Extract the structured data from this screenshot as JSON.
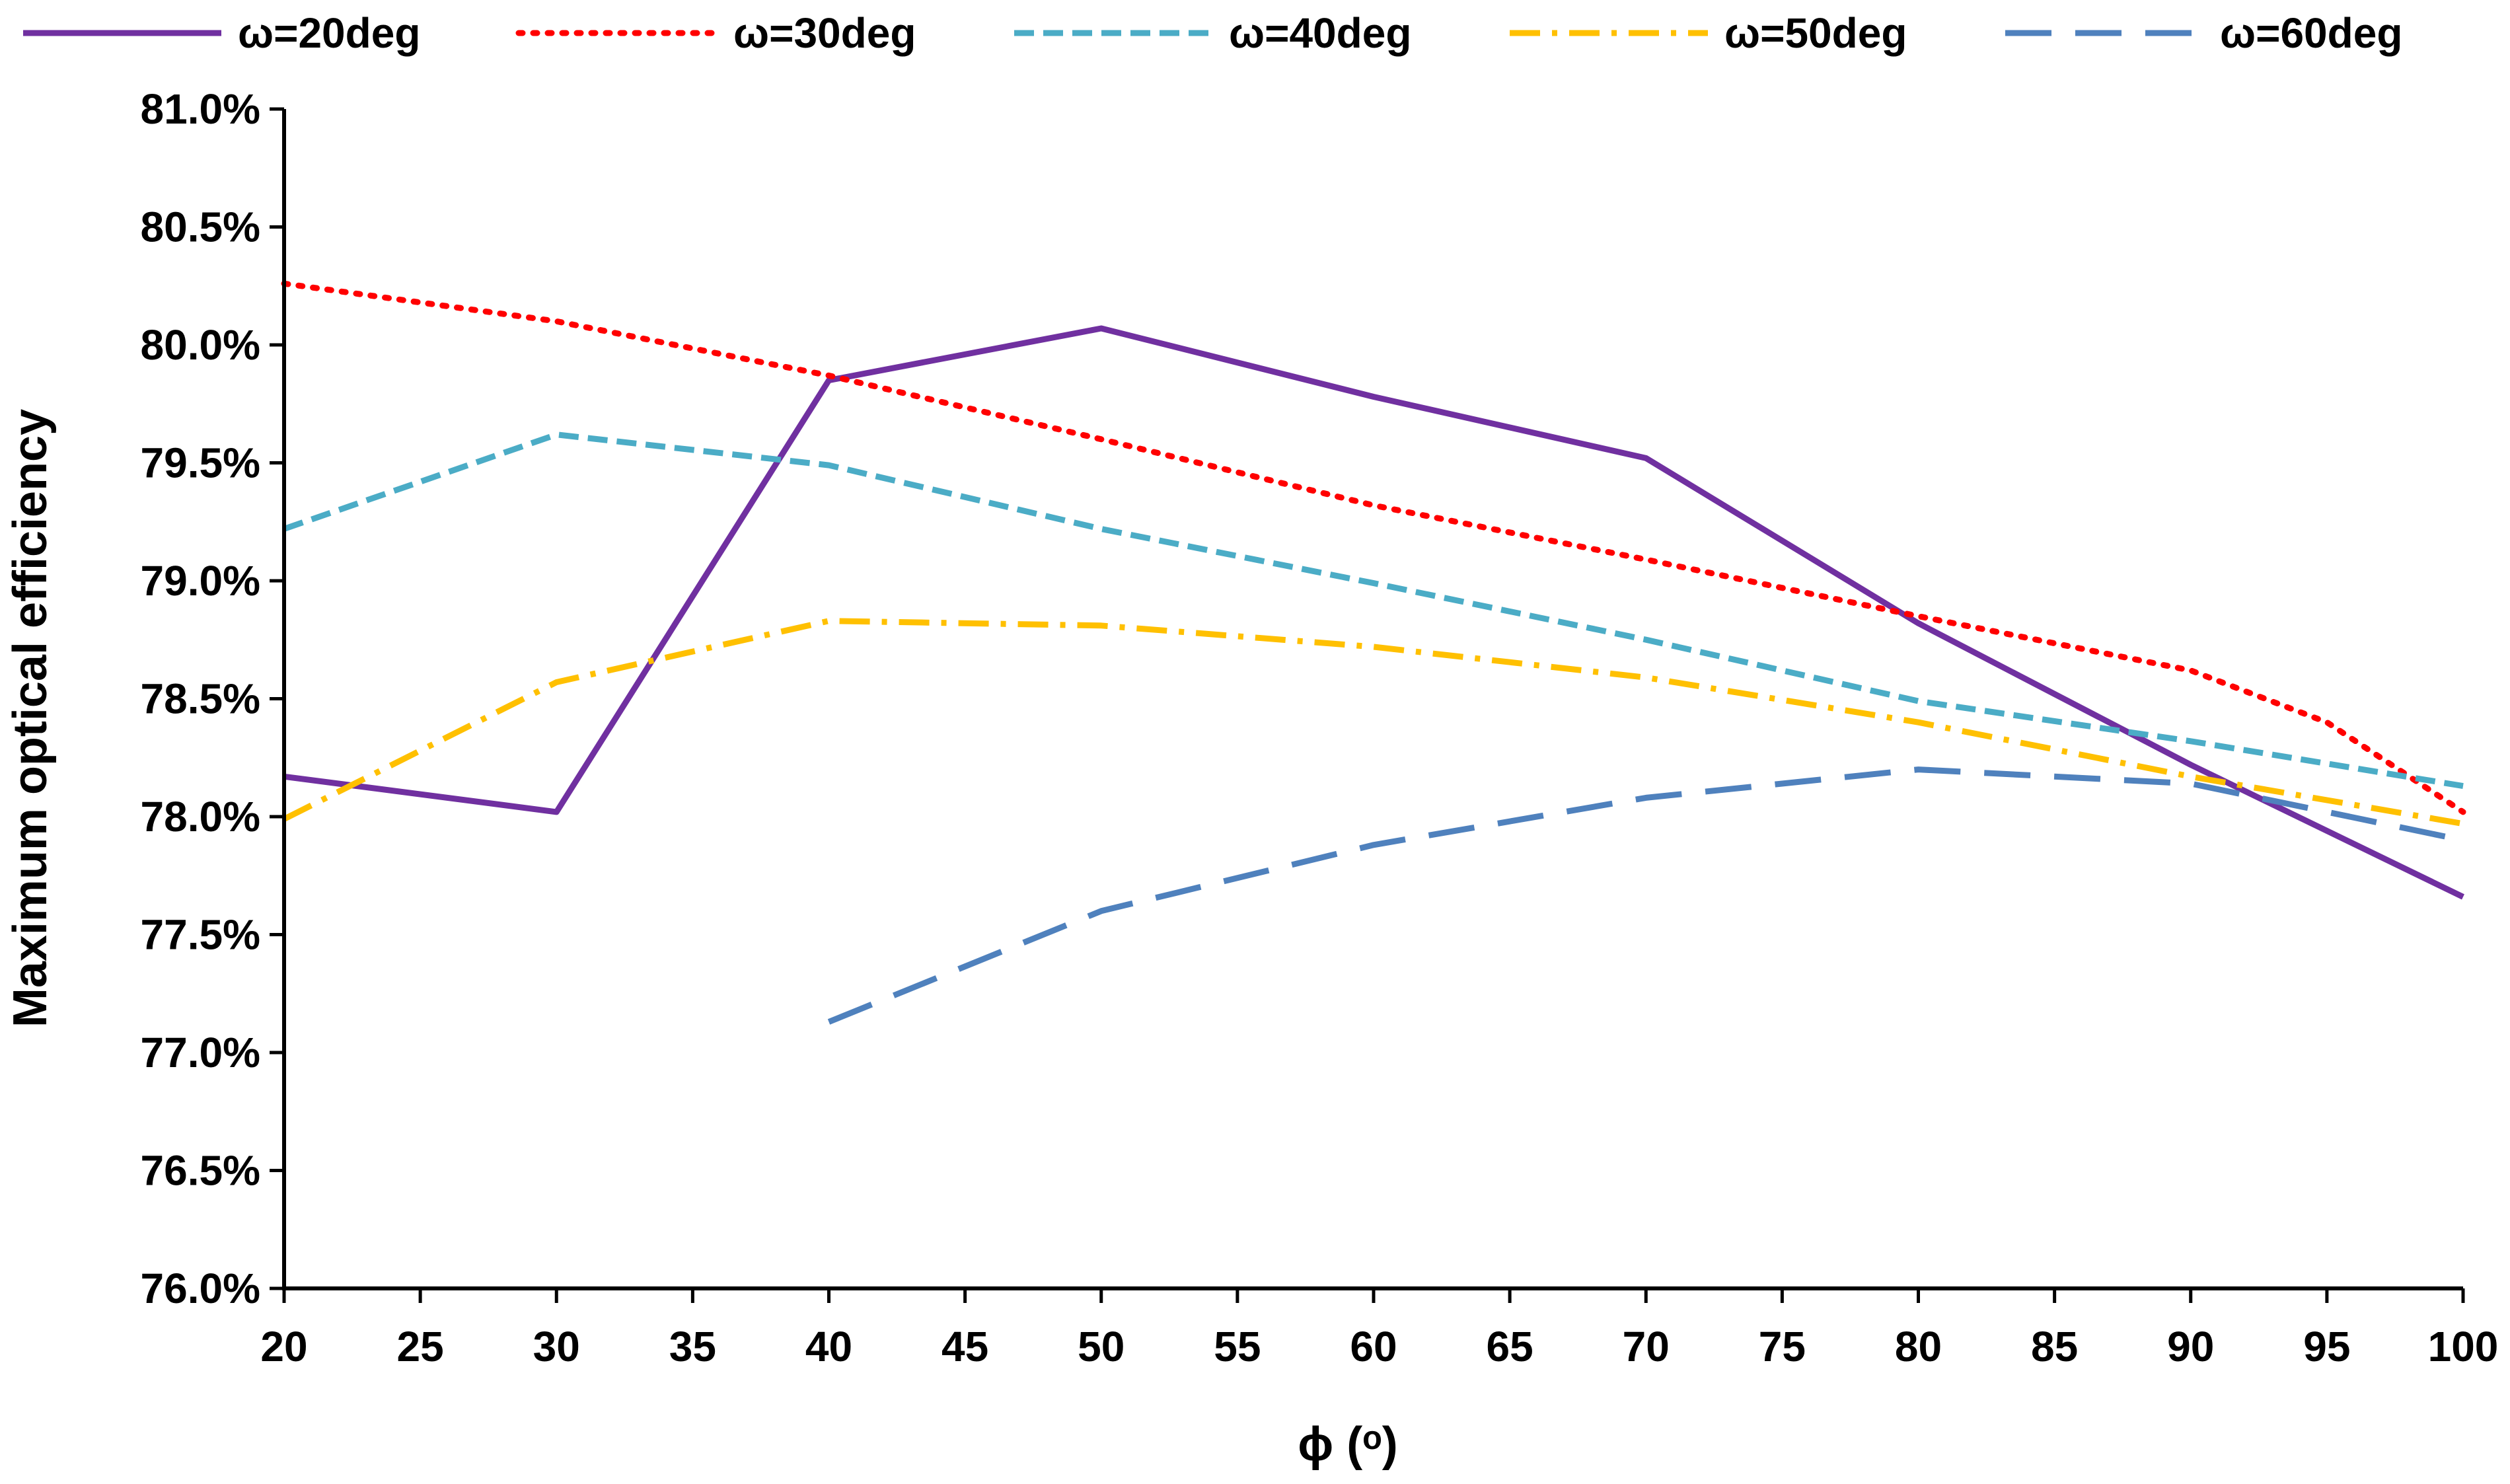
{
  "chart_data": {
    "type": "line",
    "xlabel": "ϕ (ᵒ)",
    "ylabel": "Maximum optical efficiency",
    "xlim": [
      20,
      100
    ],
    "ylim": [
      76.0,
      81.0
    ],
    "x_ticks": [
      20,
      25,
      30,
      35,
      40,
      45,
      50,
      55,
      60,
      65,
      70,
      75,
      80,
      85,
      90,
      95,
      100
    ],
    "x_tick_labels": [
      "20",
      "25",
      "30",
      "35",
      "40",
      "45",
      "50",
      "55",
      "60",
      "65",
      "70",
      "75",
      "80",
      "85",
      "90",
      "95",
      "100"
    ],
    "y_ticks": [
      76.0,
      76.5,
      77.0,
      77.5,
      78.0,
      78.5,
      79.0,
      79.5,
      80.0,
      80.5,
      81.0
    ],
    "y_tick_labels": [
      "76.0%",
      "76.5%",
      "77.0%",
      "77.5%",
      "78.0%",
      "78.5%",
      "79.0%",
      "79.5%",
      "80.0%",
      "80.5%",
      "81.0%"
    ],
    "grid": false,
    "legend_position": "top",
    "series": [
      {
        "name": "ω=20deg",
        "color": "#7030A0",
        "style": "solid",
        "points": [
          [
            20,
            78.17
          ],
          [
            30,
            78.02
          ],
          [
            40,
            79.85
          ],
          [
            50,
            80.07
          ],
          [
            60,
            79.78
          ],
          [
            70,
            79.52
          ],
          [
            80,
            78.82
          ],
          [
            90,
            78.22
          ],
          [
            100,
            77.66
          ]
        ]
      },
      {
        "name": "ω=30deg",
        "color": "#FF0000",
        "style": "dotted",
        "points": [
          [
            20,
            80.26
          ],
          [
            30,
            80.1
          ],
          [
            40,
            79.87
          ],
          [
            50,
            79.6
          ],
          [
            60,
            79.32
          ],
          [
            70,
            79.09
          ],
          [
            80,
            78.85
          ],
          [
            90,
            78.62
          ],
          [
            95,
            78.4
          ],
          [
            100,
            78.02
          ]
        ]
      },
      {
        "name": "ω=40deg",
        "color": "#4BACC6",
        "style": "dashed",
        "points": [
          [
            20,
            79.22
          ],
          [
            30,
            79.62
          ],
          [
            40,
            79.49
          ],
          [
            50,
            79.22
          ],
          [
            60,
            78.99
          ],
          [
            70,
            78.75
          ],
          [
            80,
            78.49
          ],
          [
            90,
            78.32
          ],
          [
            100,
            78.13
          ]
        ]
      },
      {
        "name": "ω=50deg",
        "color": "#FFC000",
        "style": "dashdot",
        "points": [
          [
            20,
            77.99
          ],
          [
            30,
            78.57
          ],
          [
            40,
            78.83
          ],
          [
            50,
            78.81
          ],
          [
            60,
            78.72
          ],
          [
            70,
            78.59
          ],
          [
            80,
            78.4
          ],
          [
            90,
            78.17
          ],
          [
            100,
            77.97
          ]
        ]
      },
      {
        "name": "ω=60deg",
        "color": "#4F81BD",
        "style": "longdash",
        "points": [
          [
            40,
            77.13
          ],
          [
            50,
            77.6
          ],
          [
            60,
            77.88
          ],
          [
            70,
            78.08
          ],
          [
            80,
            78.2
          ],
          [
            90,
            78.14
          ],
          [
            100,
            77.9
          ]
        ]
      }
    ]
  }
}
